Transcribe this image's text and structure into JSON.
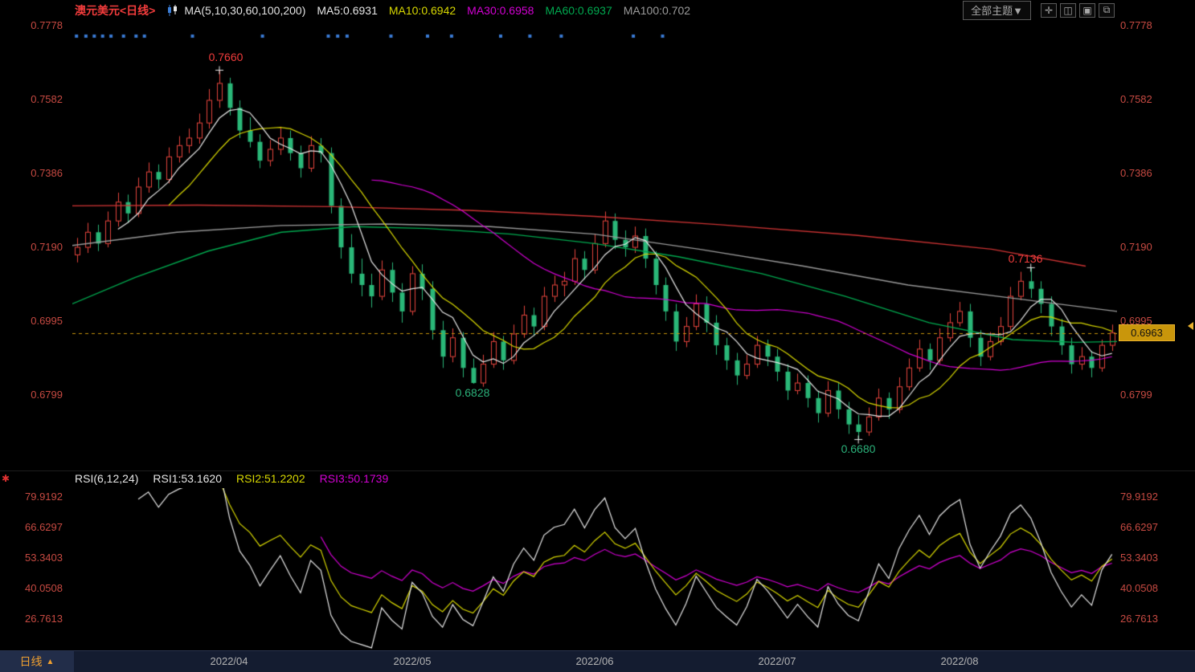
{
  "header": {
    "title": "澳元美元<日线>",
    "ma_group_label": "MA(5,10,30,60,100,200)",
    "ma5": "MA5:0.6931",
    "ma10": "MA10:0.6942",
    "ma30": "MA30:0.6958",
    "ma60": "MA60:0.6937",
    "ma100": "MA100:0.702",
    "theme_button": "全部主题▼",
    "icons": {
      "pan": "✛",
      "grid": "◫",
      "rows": "▣",
      "window": "⧉"
    }
  },
  "colors": {
    "up": "#e5443c",
    "down": "#2ab778",
    "ma5": "#e6e6e6",
    "ma10": "#d8d800",
    "ma30": "#d400d4",
    "ma60": "#00a94f",
    "ma100": "#9a9a9a",
    "ma200": "#cc3333",
    "price_line": "#c9960b",
    "event_dot": "#3a7bd5",
    "axis_label": "#c74a42",
    "annotation_high": "#f23c3c",
    "annotation_low": "#2bb17a",
    "rsi1": "#e6e6e6",
    "rsi2": "#d8d800",
    "rsi3": "#d400d4"
  },
  "chart_data": {
    "type": "candlestick",
    "instrument": "澳元美元",
    "period": "日线",
    "ylim": [
      0.66,
      0.7793
    ],
    "y_axis_labels": [
      "0.7778",
      "0.7582",
      "0.7386",
      "0.7190",
      "0.6995",
      "0.6799"
    ],
    "x_ticks": [
      {
        "i": 15,
        "label": "2022/04"
      },
      {
        "i": 33,
        "label": "2022/05"
      },
      {
        "i": 51,
        "label": "2022/06"
      },
      {
        "i": 69,
        "label": "2022/07"
      },
      {
        "i": 87,
        "label": "2022/08"
      }
    ],
    "candles": [
      [
        0.717,
        0.7215,
        0.715,
        0.719
      ],
      [
        0.719,
        0.7255,
        0.7175,
        0.723
      ],
      [
        0.723,
        0.725,
        0.718,
        0.72
      ],
      [
        0.72,
        0.7285,
        0.719,
        0.726
      ],
      [
        0.726,
        0.7335,
        0.7245,
        0.731
      ],
      [
        0.731,
        0.733,
        0.7255,
        0.728
      ],
      [
        0.728,
        0.7375,
        0.727,
        0.735
      ],
      [
        0.735,
        0.7415,
        0.7335,
        0.739
      ],
      [
        0.739,
        0.741,
        0.7345,
        0.737
      ],
      [
        0.737,
        0.7455,
        0.736,
        0.743
      ],
      [
        0.743,
        0.7485,
        0.7415,
        0.746
      ],
      [
        0.746,
        0.7505,
        0.744,
        0.748
      ],
      [
        0.748,
        0.7545,
        0.7465,
        0.752
      ],
      [
        0.752,
        0.761,
        0.7505,
        0.758
      ],
      [
        0.758,
        0.766,
        0.756,
        0.7625
      ],
      [
        0.7625,
        0.764,
        0.754,
        0.756
      ],
      [
        0.756,
        0.758,
        0.748,
        0.75
      ],
      [
        0.75,
        0.7535,
        0.7455,
        0.747
      ],
      [
        0.747,
        0.749,
        0.74,
        0.742
      ],
      [
        0.742,
        0.7475,
        0.7405,
        0.745
      ],
      [
        0.745,
        0.751,
        0.7435,
        0.748
      ],
      [
        0.748,
        0.75,
        0.742,
        0.744
      ],
      [
        0.744,
        0.746,
        0.7375,
        0.74
      ],
      [
        0.74,
        0.7485,
        0.739,
        0.746
      ],
      [
        0.746,
        0.748,
        0.7415,
        0.744
      ],
      [
        0.744,
        0.7455,
        0.728,
        0.73
      ],
      [
        0.73,
        0.732,
        0.716,
        0.719
      ],
      [
        0.719,
        0.7225,
        0.7095,
        0.712
      ],
      [
        0.712,
        0.716,
        0.706,
        0.709
      ],
      [
        0.709,
        0.712,
        0.703,
        0.706
      ],
      [
        0.706,
        0.7155,
        0.705,
        0.713
      ],
      [
        0.713,
        0.715,
        0.7045,
        0.707
      ],
      [
        0.707,
        0.7095,
        0.699,
        0.702
      ],
      [
        0.702,
        0.714,
        0.701,
        0.712
      ],
      [
        0.712,
        0.7145,
        0.705,
        0.708
      ],
      [
        0.708,
        0.71,
        0.6945,
        0.697
      ],
      [
        0.697,
        0.6995,
        0.687,
        0.69
      ],
      [
        0.69,
        0.6975,
        0.6885,
        0.695
      ],
      [
        0.695,
        0.6965,
        0.6845,
        0.687
      ],
      [
        0.687,
        0.6895,
        0.6828,
        0.683
      ],
      [
        0.683,
        0.6905,
        0.682,
        0.688
      ],
      [
        0.688,
        0.6965,
        0.687,
        0.694
      ],
      [
        0.694,
        0.6955,
        0.6865,
        0.689
      ],
      [
        0.689,
        0.6985,
        0.688,
        0.696
      ],
      [
        0.696,
        0.7035,
        0.695,
        0.701
      ],
      [
        0.701,
        0.703,
        0.6955,
        0.698
      ],
      [
        0.698,
        0.7085,
        0.697,
        0.706
      ],
      [
        0.706,
        0.7115,
        0.7045,
        0.709
      ],
      [
        0.709,
        0.7125,
        0.706,
        0.71
      ],
      [
        0.71,
        0.7185,
        0.709,
        0.716
      ],
      [
        0.716,
        0.718,
        0.7105,
        0.713
      ],
      [
        0.713,
        0.7225,
        0.712,
        0.72
      ],
      [
        0.72,
        0.7285,
        0.719,
        0.726
      ],
      [
        0.726,
        0.728,
        0.7185,
        0.721
      ],
      [
        0.721,
        0.7235,
        0.7165,
        0.719
      ],
      [
        0.719,
        0.7245,
        0.7175,
        0.722
      ],
      [
        0.722,
        0.724,
        0.7135,
        0.716
      ],
      [
        0.716,
        0.718,
        0.7065,
        0.709
      ],
      [
        0.709,
        0.711,
        0.6995,
        0.702
      ],
      [
        0.702,
        0.704,
        0.6915,
        0.694
      ],
      [
        0.694,
        0.7005,
        0.6925,
        0.698
      ],
      [
        0.698,
        0.7065,
        0.697,
        0.704
      ],
      [
        0.704,
        0.706,
        0.6965,
        0.699
      ],
      [
        0.699,
        0.701,
        0.6905,
        0.693
      ],
      [
        0.693,
        0.695,
        0.6865,
        0.689
      ],
      [
        0.689,
        0.691,
        0.6825,
        0.685
      ],
      [
        0.685,
        0.6905,
        0.684,
        0.688
      ],
      [
        0.688,
        0.6955,
        0.687,
        0.693
      ],
      [
        0.693,
        0.6945,
        0.6875,
        0.69
      ],
      [
        0.69,
        0.692,
        0.6835,
        0.686
      ],
      [
        0.686,
        0.688,
        0.6785,
        0.681
      ],
      [
        0.681,
        0.6855,
        0.68,
        0.683
      ],
      [
        0.683,
        0.685,
        0.6765,
        0.679
      ],
      [
        0.679,
        0.681,
        0.6725,
        0.675
      ],
      [
        0.675,
        0.6835,
        0.674,
        0.681
      ],
      [
        0.681,
        0.683,
        0.6735,
        0.676
      ],
      [
        0.676,
        0.678,
        0.6695,
        0.672
      ],
      [
        0.672,
        0.6745,
        0.668,
        0.67
      ],
      [
        0.67,
        0.6765,
        0.669,
        0.674
      ],
      [
        0.674,
        0.6815,
        0.673,
        0.679
      ],
      [
        0.679,
        0.6805,
        0.6735,
        0.676
      ],
      [
        0.676,
        0.6845,
        0.675,
        0.682
      ],
      [
        0.682,
        0.6895,
        0.681,
        0.687
      ],
      [
        0.687,
        0.6945,
        0.686,
        0.692
      ],
      [
        0.692,
        0.6935,
        0.6865,
        0.689
      ],
      [
        0.689,
        0.6975,
        0.688,
        0.695
      ],
      [
        0.695,
        0.7015,
        0.694,
        0.699
      ],
      [
        0.699,
        0.7045,
        0.698,
        0.702
      ],
      [
        0.702,
        0.704,
        0.6925,
        0.695
      ],
      [
        0.695,
        0.697,
        0.6875,
        0.69
      ],
      [
        0.69,
        0.6965,
        0.689,
        0.694
      ],
      [
        0.694,
        0.7005,
        0.693,
        0.698
      ],
      [
        0.698,
        0.7085,
        0.697,
        0.706
      ],
      [
        0.706,
        0.7125,
        0.705,
        0.71
      ],
      [
        0.71,
        0.7136,
        0.7055,
        0.708
      ],
      [
        0.708,
        0.71,
        0.7015,
        0.704
      ],
      [
        0.704,
        0.706,
        0.6955,
        0.698
      ],
      [
        0.698,
        0.7,
        0.6905,
        0.693
      ],
      [
        0.693,
        0.695,
        0.6855,
        0.688
      ],
      [
        0.688,
        0.6925,
        0.6865,
        0.69
      ],
      [
        0.69,
        0.6915,
        0.6845,
        0.687
      ],
      [
        0.687,
        0.6945,
        0.686,
        0.693
      ],
      [
        0.693,
        0.6985,
        0.6915,
        0.6963
      ]
    ],
    "moving_averages": [
      {
        "name": "MA5",
        "period": 5,
        "color": "#e6e6e6",
        "current": 0.6931
      },
      {
        "name": "MA10",
        "period": 10,
        "color": "#d8d800",
        "current": 0.6942
      },
      {
        "name": "MA30",
        "period": 30,
        "color": "#d400d4",
        "current": 0.6958
      }
    ],
    "overlays": [
      {
        "name": "MA60",
        "color": "#00a94f",
        "current": 0.6937,
        "points": [
          [
            0.0,
            0.704
          ],
          [
            0.06,
            0.711
          ],
          [
            0.13,
            0.718
          ],
          [
            0.2,
            0.723
          ],
          [
            0.27,
            0.7245
          ],
          [
            0.34,
            0.724
          ],
          [
            0.42,
            0.7225
          ],
          [
            0.5,
            0.72
          ],
          [
            0.58,
            0.7165
          ],
          [
            0.66,
            0.712
          ],
          [
            0.74,
            0.706
          ],
          [
            0.82,
            0.699
          ],
          [
            0.9,
            0.6945
          ],
          [
            0.96,
            0.6938
          ],
          [
            1.0,
            0.694
          ]
        ]
      },
      {
        "name": "MA100",
        "color": "#9a9a9a",
        "current": 0.702,
        "points": [
          [
            0.0,
            0.7195
          ],
          [
            0.1,
            0.723
          ],
          [
            0.2,
            0.7248
          ],
          [
            0.3,
            0.7252
          ],
          [
            0.4,
            0.7245
          ],
          [
            0.5,
            0.7225
          ],
          [
            0.6,
            0.7185
          ],
          [
            0.7,
            0.714
          ],
          [
            0.8,
            0.709
          ],
          [
            0.9,
            0.7055
          ],
          [
            1.0,
            0.702
          ]
        ]
      },
      {
        "name": "MA200",
        "color": "#cc3333",
        "points": [
          [
            0.0,
            0.73
          ],
          [
            0.12,
            0.7302
          ],
          [
            0.25,
            0.7298
          ],
          [
            0.38,
            0.7288
          ],
          [
            0.5,
            0.7272
          ],
          [
            0.62,
            0.725
          ],
          [
            0.75,
            0.7222
          ],
          [
            0.88,
            0.7185
          ],
          [
            0.97,
            0.714
          ]
        ]
      }
    ],
    "annotations": [
      {
        "text": "0.7660",
        "type": "high",
        "i": 14
      },
      {
        "text": "0.6828",
        "type": "low",
        "i": 39
      },
      {
        "text": "0.6680",
        "type": "low",
        "i": 77
      },
      {
        "text": "0.7136",
        "type": "high",
        "i": 94
      }
    ],
    "extreme_marks": [
      [
        14,
        "h"
      ],
      [
        77,
        "l"
      ],
      [
        94,
        "h"
      ]
    ],
    "last_price": 0.6963,
    "last_price_label": "0.6963",
    "event_dots": [
      0.004,
      0.013,
      0.021,
      0.029,
      0.037,
      0.049,
      0.061,
      0.069,
      0.115,
      0.182,
      0.245,
      0.254,
      0.263,
      0.305,
      0.34,
      0.363,
      0.41,
      0.438,
      0.468,
      0.537,
      0.565
    ],
    "rsi": {
      "params_label": "RSI(6,12,24)",
      "periods": [
        6,
        12,
        24
      ],
      "legend": [
        {
          "label": "RSI1:53.1620",
          "color": "#e6e6e6"
        },
        {
          "label": "RSI2:51.2202",
          "color": "#d8d800"
        },
        {
          "label": "RSI3:50.1739",
          "color": "#d400d4"
        }
      ],
      "y_labels": [
        "79.9192",
        "66.6297",
        "53.3403",
        "40.0508",
        "26.7613"
      ],
      "ylim": [
        12.8,
        83.4
      ]
    }
  },
  "footer": {
    "period_label": "日线",
    "period_arrow": "▲"
  }
}
